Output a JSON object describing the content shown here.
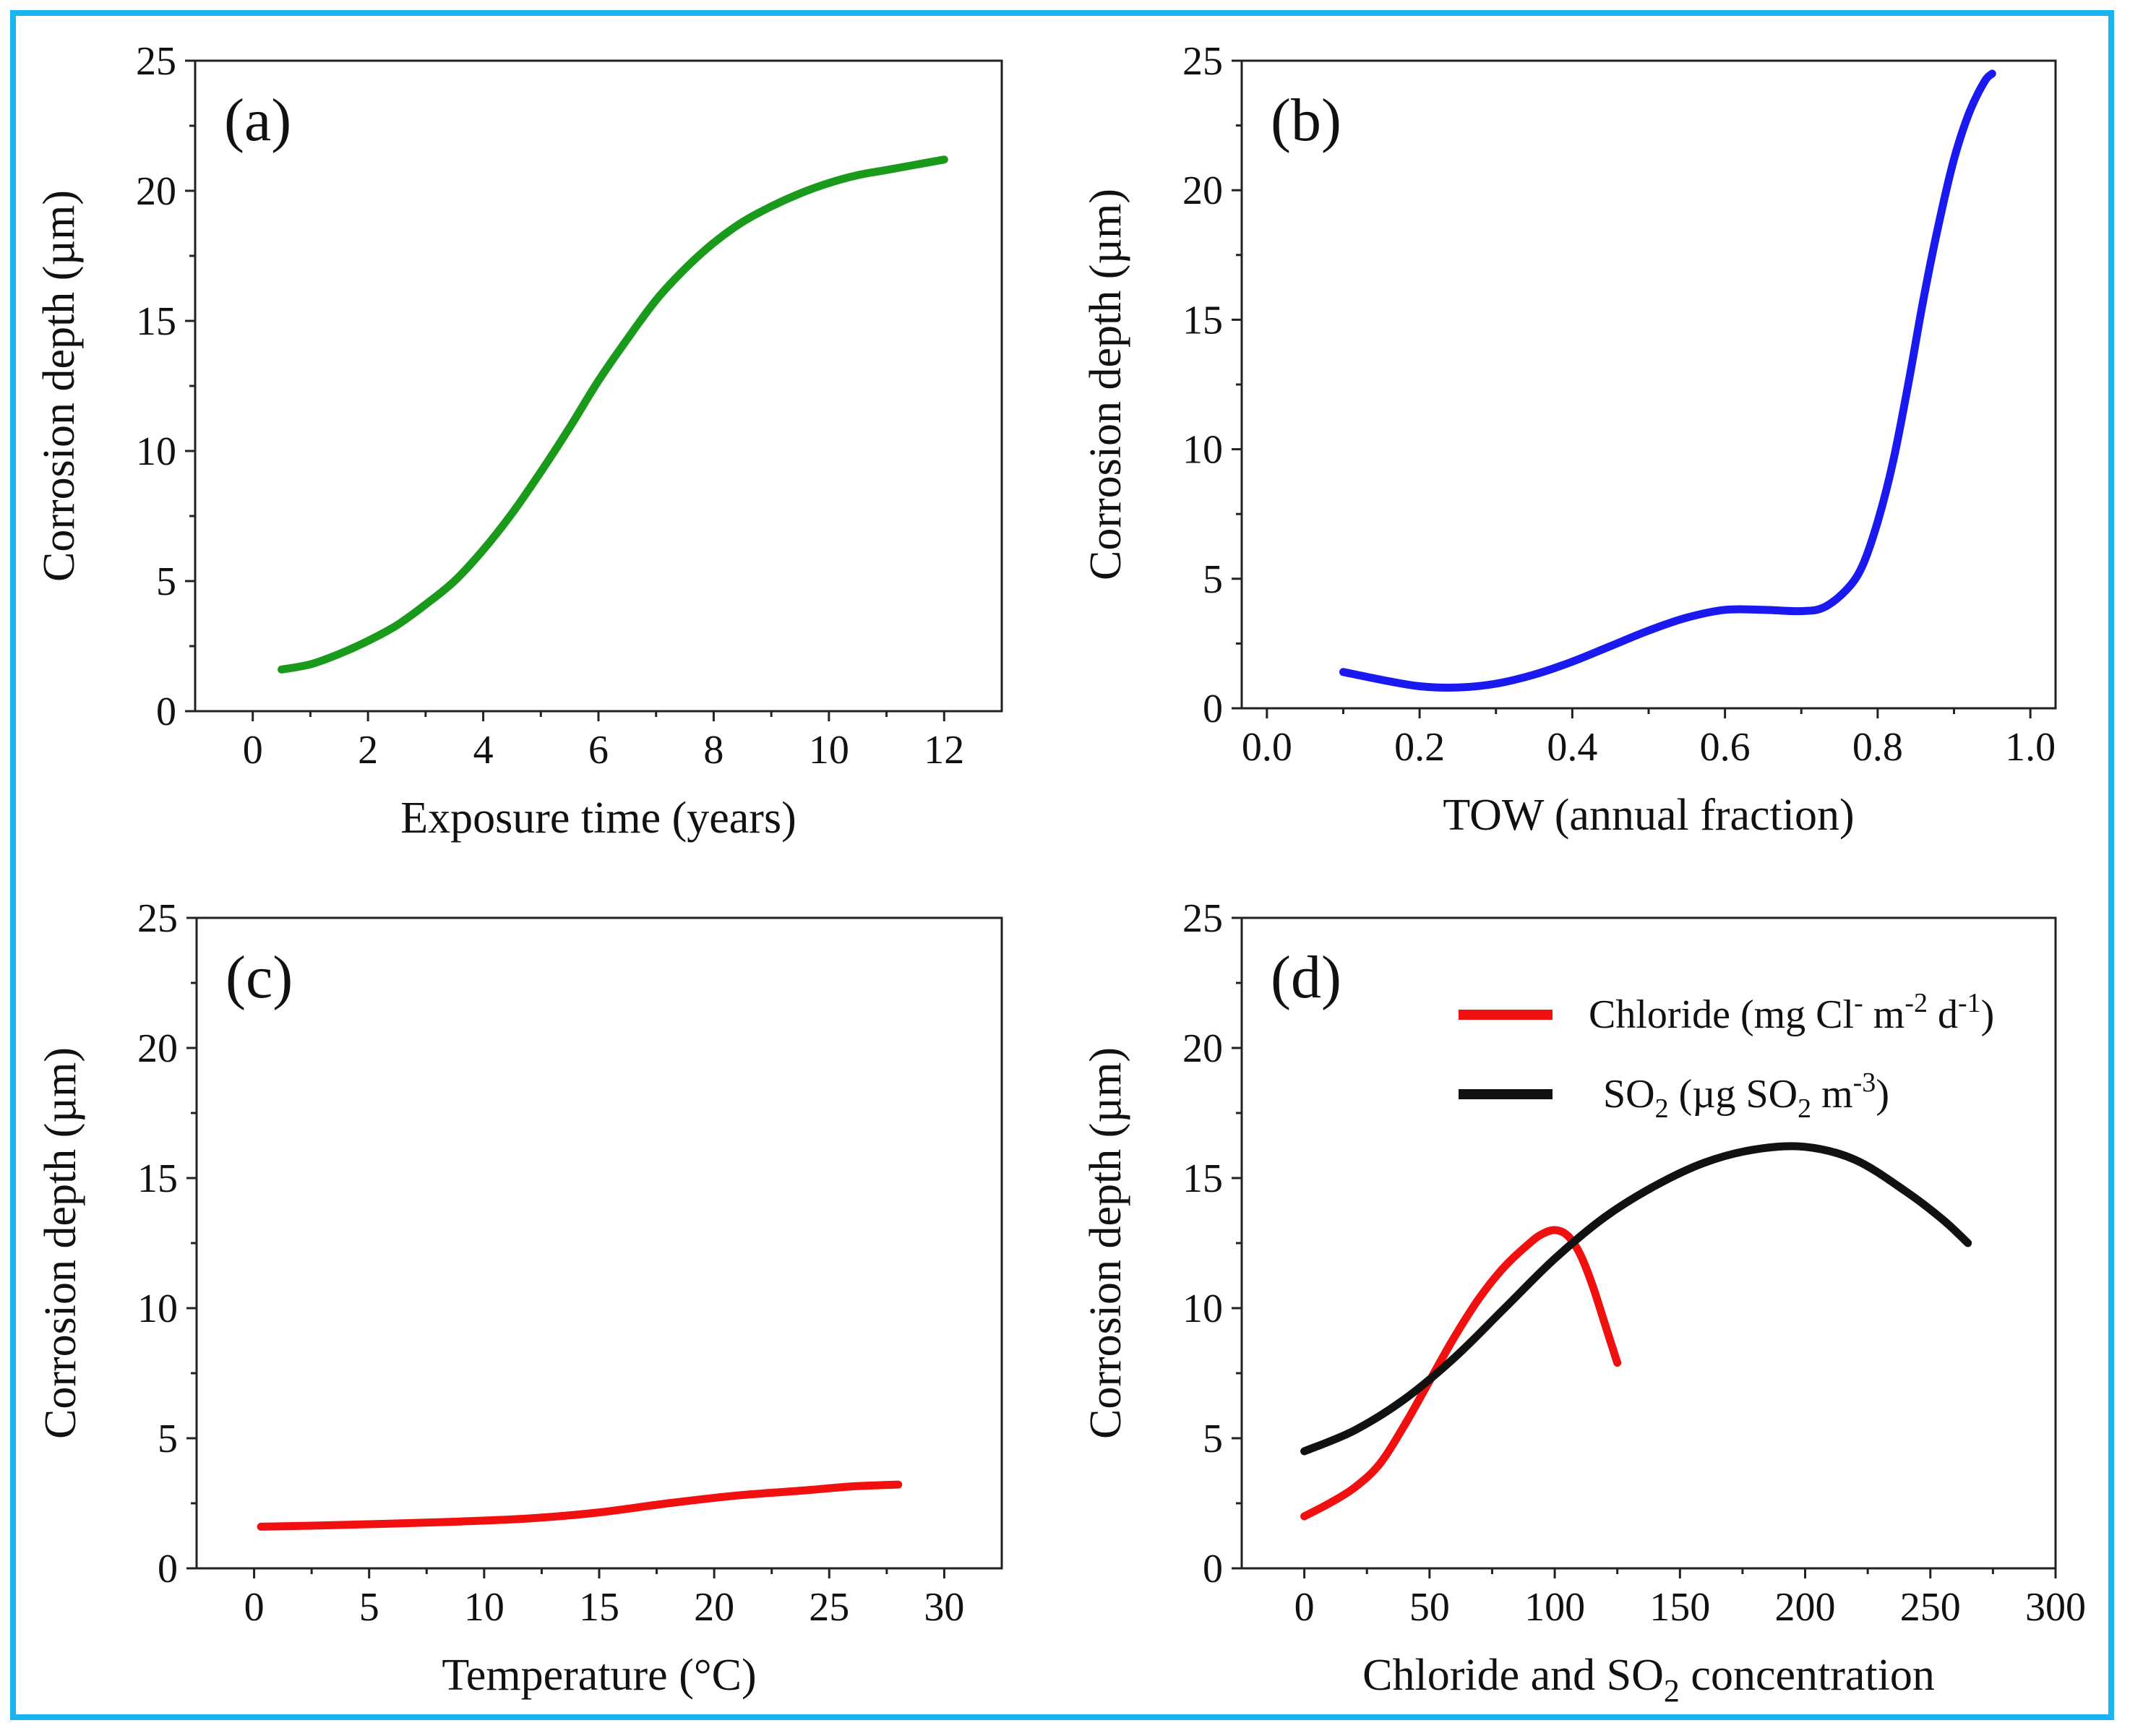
{
  "chart_data": [
    {
      "type": "line",
      "panel_label": "(a)",
      "xlabel": "Exposure time (years)",
      "ylabel": "Corrosion depth (µm)",
      "xlim": [
        -1,
        13
      ],
      "ylim": [
        0,
        25
      ],
      "x_ticks": [
        "0",
        "2",
        "4",
        "6",
        "8",
        "10",
        "12"
      ],
      "y_ticks": [
        "0",
        "5",
        "10",
        "15",
        "20",
        "25"
      ],
      "series": [
        {
          "name": "Exposure time",
          "color": "#1a9a1a",
          "x": [
            0.5,
            1,
            1.5,
            2,
            2.5,
            3,
            3.5,
            4,
            4.5,
            5,
            5.5,
            6,
            6.5,
            7,
            7.5,
            8,
            8.5,
            9,
            9.5,
            10,
            10.5,
            11,
            11.5,
            12
          ],
          "y": [
            1.6,
            1.8,
            2.2,
            2.7,
            3.3,
            4.1,
            5.0,
            6.2,
            7.6,
            9.2,
            10.9,
            12.7,
            14.3,
            15.8,
            17.0,
            18.0,
            18.8,
            19.4,
            19.9,
            20.3,
            20.6,
            20.8,
            21.0,
            21.2
          ]
        }
      ]
    },
    {
      "type": "line",
      "panel_label": "(b)",
      "xlabel": "TOW (annual fraction)",
      "ylabel": "Corrosion depth (µm)",
      "xlim": [
        -0.033,
        1.033
      ],
      "ylim": [
        0,
        25
      ],
      "x_ticks": [
        "0.0",
        "0.2",
        "0.4",
        "0.6",
        "0.8",
        "1.0"
      ],
      "y_ticks": [
        "0",
        "5",
        "10",
        "15",
        "20",
        "25"
      ],
      "series": [
        {
          "name": "TOW",
          "color": "#1a1af0",
          "x": [
            0.1,
            0.15,
            0.2,
            0.25,
            0.3,
            0.35,
            0.4,
            0.45,
            0.5,
            0.55,
            0.6,
            0.65,
            0.7,
            0.73,
            0.76,
            0.78,
            0.8,
            0.82,
            0.84,
            0.86,
            0.88,
            0.9,
            0.92,
            0.94,
            0.95
          ],
          "y": [
            1.4,
            1.1,
            0.85,
            0.8,
            0.95,
            1.3,
            1.8,
            2.4,
            3.0,
            3.5,
            3.8,
            3.8,
            3.75,
            3.9,
            4.6,
            5.5,
            7.2,
            9.5,
            12.5,
            15.8,
            18.7,
            21.2,
            23.0,
            24.2,
            24.5
          ]
        }
      ]
    },
    {
      "type": "line",
      "panel_label": "(c)",
      "xlabel": "Temperature (°C)",
      "ylabel": "Corrosion depth (µm)",
      "xlim": [
        -2.5,
        32.5
      ],
      "ylim": [
        0,
        25
      ],
      "x_ticks": [
        "0",
        "5",
        "10",
        "15",
        "20",
        "25",
        "30"
      ],
      "y_ticks": [
        "0",
        "5",
        "10",
        "15",
        "20",
        "25"
      ],
      "series": [
        {
          "name": "Temperature",
          "color": "#f01010",
          "x": [
            0.3,
            3,
            6,
            9,
            12,
            15,
            18,
            21,
            24,
            26,
            28
          ],
          "y": [
            1.6,
            1.65,
            1.72,
            1.8,
            1.92,
            2.15,
            2.5,
            2.8,
            3.0,
            3.15,
            3.22
          ]
        }
      ]
    },
    {
      "type": "line",
      "panel_label": "(d)",
      "xlabel": "Chloride and SO2 concentration",
      "ylabel": "Corrosion depth (µm)",
      "xlim": [
        -25,
        300
      ],
      "ylim": [
        0,
        25
      ],
      "x_ticks": [
        "0",
        "50",
        "100",
        "150",
        "200",
        "250",
        "300"
      ],
      "y_ticks": [
        "0",
        "5",
        "10",
        "15",
        "20",
        "25"
      ],
      "legend": "top-right",
      "series": [
        {
          "name": "Chloride (mg Cl- m-2 d-1)",
          "color": "#f01010",
          "x": [
            0,
            10,
            20,
            30,
            40,
            50,
            60,
            70,
            80,
            90,
            95,
            100,
            105,
            110,
            115,
            120,
            125
          ],
          "y": [
            2.0,
            2.5,
            3.1,
            4.0,
            5.5,
            7.2,
            8.9,
            10.4,
            11.6,
            12.5,
            12.85,
            13.0,
            12.8,
            12.1,
            10.9,
            9.4,
            7.9
          ]
        },
        {
          "name": "SO2 (µg SO2 m-3)",
          "color": "#111111",
          "x": [
            0,
            20,
            40,
            60,
            80,
            100,
            120,
            140,
            160,
            180,
            200,
            220,
            240,
            255,
            265
          ],
          "y": [
            4.5,
            5.3,
            6.5,
            8.1,
            10.0,
            11.9,
            13.5,
            14.7,
            15.6,
            16.1,
            16.2,
            15.7,
            14.5,
            13.4,
            12.5
          ]
        }
      ]
    }
  ],
  "legend_d": {
    "chloride_main": "Chloride (mg Cl",
    "chloride_sup1": "-",
    "chloride_mid": " m",
    "chloride_sup2": "-2",
    "chloride_mid2": " d",
    "chloride_sup3": "-1",
    "chloride_end": ")",
    "so2_main": "SO",
    "so2_sub": "2",
    "so2_mid": " (µg SO",
    "so2_sub2": "2",
    "so2_mid2": " m",
    "so2_sup": "-3",
    "so2_end": ")"
  },
  "xlabel_d_parts": {
    "pre": "Chloride and SO",
    "sub": "2",
    "post": " concentration"
  }
}
